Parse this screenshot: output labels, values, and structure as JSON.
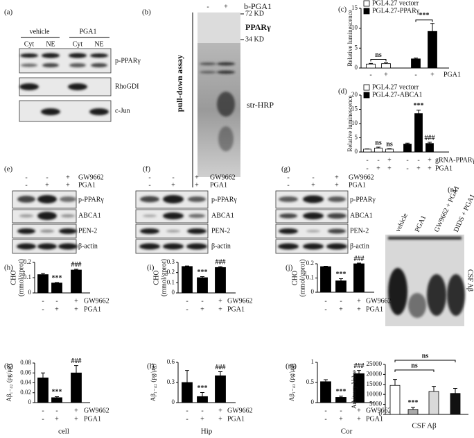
{
  "figure": {
    "a": {
      "label": "(a)",
      "groups": [
        "vehicle",
        "PGA1"
      ],
      "lanes": [
        "Cyt",
        "NE",
        "Cyt",
        "NE"
      ],
      "bands": [
        "p-PPARγ",
        "RhoGDI",
        "c-Jun"
      ]
    },
    "b": {
      "label": "(b)",
      "lanes": [
        "-",
        "+"
      ],
      "probe": "b-PGA1",
      "markers": [
        "72 KD",
        "34 KD"
      ],
      "bands": [
        "PPARγ",
        "str-HRP"
      ],
      "side": "pull-down assay"
    },
    "e": {
      "label": "(e)",
      "rows": [
        {
          "name": "GW9662",
          "values": [
            "-",
            "-",
            "+"
          ]
        },
        {
          "name": "PGA1",
          "values": [
            "-",
            "+",
            "+"
          ]
        }
      ],
      "bands": [
        "p-PPARγ",
        "ABCA1",
        "PEN-2",
        "β-actin"
      ]
    },
    "f": {
      "label": "(f)",
      "rows": [
        {
          "name": "GW9662",
          "values": [
            "-",
            "-",
            "+"
          ]
        },
        {
          "name": "PGA1",
          "values": [
            "-",
            "+",
            "+"
          ]
        }
      ],
      "bands": [
        "p-PPARγ",
        "ABCA1",
        "PEN-2",
        "β-actin"
      ]
    },
    "g": {
      "label": "(g)",
      "rows": [
        {
          "name": "GW9662",
          "values": [
            "-",
            "-",
            "+"
          ]
        },
        {
          "name": "PGA1",
          "values": [
            "-",
            "+",
            "+"
          ]
        }
      ],
      "bands": [
        "p-PPARγ",
        "ABCA1",
        "PEN-2",
        "β-actin"
      ]
    },
    "n": {
      "label": "(n)",
      "lanes": [
        "vehicle",
        "PGA1",
        "GW9662 + PGA1",
        "DIDS + PGA1"
      ],
      "band": "CSF Aβ"
    }
  },
  "chart_data": [
    {
      "type": "bar",
      "label": "(c)",
      "ylabel": "Relative luminescence",
      "ylim": [
        0,
        15
      ],
      "yticks": [
        0,
        5,
        10,
        15
      ],
      "series": [
        {
          "name": "PGL4.27 vectorr",
          "color": "#ffffff",
          "values": [
            1.0,
            1.1,
            null,
            null
          ],
          "errors": [
            0.15,
            0.2,
            null,
            null
          ]
        },
        {
          "name": "PGL4.27-PPARγ",
          "color": "#000000",
          "values": [
            null,
            null,
            2.3,
            9.2
          ],
          "errors": [
            null,
            null,
            0.2,
            2.0
          ]
        }
      ],
      "rows": [
        {
          "name": "PGA1",
          "values": [
            "-",
            "+",
            "-",
            "+"
          ]
        }
      ],
      "annotations": [
        "ns",
        "***"
      ]
    },
    {
      "type": "bar",
      "label": "(d)",
      "ylabel": "Relative luminescence",
      "ylim": [
        0,
        20
      ],
      "yticks": [
        0,
        5,
        10,
        15,
        20
      ],
      "series": [
        {
          "name": "PGL4.27 vectorr",
          "color": "#ffffff",
          "values": [
            1.0,
            1.4,
            1.0,
            null,
            null,
            null
          ],
          "errors": [
            0.1,
            0.3,
            0.2,
            null,
            null,
            null
          ]
        },
        {
          "name": "PGL4.27-ABCA1",
          "color": "#000000",
          "values": [
            null,
            null,
            null,
            2.8,
            13.5,
            3.0
          ],
          "errors": [
            null,
            null,
            null,
            0.3,
            1.2,
            0.4
          ]
        }
      ],
      "rows": [
        {
          "name": "gRNA-PPARγ",
          "values": [
            "-",
            "-",
            "+",
            "-",
            "-",
            "+"
          ]
        },
        {
          "name": "PGA1",
          "values": [
            "-",
            "+",
            "+",
            "-",
            "+",
            "+"
          ]
        }
      ],
      "annotations": [
        "ns",
        "ns",
        "***",
        "###"
      ]
    },
    {
      "type": "bar",
      "label": "(h)",
      "ylabel": [
        "CHO",
        "(mmol/gprot)"
      ],
      "ylim": [
        0,
        0.2
      ],
      "yticks": [
        0,
        0.1,
        0.2
      ],
      "series": [
        {
          "color": "#000000",
          "values": [
            0.12,
            0.065,
            0.15
          ],
          "errors": [
            0.008,
            0.003,
            0.005
          ]
        }
      ],
      "rows": [
        {
          "name": "GW9662",
          "values": [
            "-",
            "-",
            "+"
          ]
        },
        {
          "name": "PGA1",
          "values": [
            "-",
            "+",
            "+"
          ]
        }
      ],
      "annotations": [
        "***",
        "###"
      ]
    },
    {
      "type": "bar",
      "label": "(i)",
      "ylabel": [
        "CHO",
        "(mmol/gprot)"
      ],
      "ylim": [
        0,
        0.3
      ],
      "yticks": [
        0,
        0.1,
        0.2,
        0.3
      ],
      "series": [
        {
          "color": "#000000",
          "values": [
            0.26,
            0.15,
            0.25
          ],
          "errors": [
            0.005,
            0.01,
            0.008
          ]
        }
      ],
      "rows": [
        {
          "name": "GW9662",
          "values": [
            "-",
            "-",
            "+"
          ]
        },
        {
          "name": "PGA1",
          "values": [
            "-",
            "+",
            "+"
          ]
        }
      ],
      "annotations": [
        "***",
        "###"
      ]
    },
    {
      "type": "bar",
      "label": "(j)",
      "ylabel": [
        "CHO",
        "(mmol/gprot)"
      ],
      "ylim": [
        0,
        0.2
      ],
      "yticks": [
        0,
        0.1,
        0.2
      ],
      "series": [
        {
          "color": "#000000",
          "values": [
            0.18,
            0.08,
            0.2
          ],
          "errors": [
            0.003,
            0.015,
            0.005
          ]
        }
      ],
      "rows": [
        {
          "name": "GW9662",
          "values": [
            "-",
            "-",
            "+"
          ]
        },
        {
          "name": "PGA1",
          "values": [
            "-",
            "+",
            "+"
          ]
        }
      ],
      "annotations": [
        "***",
        "###"
      ]
    },
    {
      "type": "bar",
      "label": "(k)",
      "ylabel": "Aβ₁₋₄₂ (pg/μg)",
      "xlabel": "cell",
      "ylim": [
        0,
        0.08
      ],
      "yticks": [
        0,
        0.02,
        0.04,
        0.06,
        0.08
      ],
      "series": [
        {
          "color": "#000000",
          "values": [
            0.05,
            0.01,
            0.06
          ],
          "errors": [
            0.01,
            0.002,
            0.015
          ]
        }
      ],
      "rows": [
        {
          "name": "GW9662",
          "values": [
            "-",
            "-",
            "+"
          ]
        },
        {
          "name": "PGA1",
          "values": [
            "-",
            "+",
            "+"
          ]
        }
      ],
      "annotations": [
        "***",
        "###"
      ]
    },
    {
      "type": "bar",
      "label": "(l)",
      "ylabel": "Aβ₁₋₄₂ (pg/μg)",
      "xlabel": "Hip",
      "ylim": [
        0,
        0.6
      ],
      "yticks": [
        0,
        0.3,
        0.6
      ],
      "series": [
        {
          "color": "#000000",
          "values": [
            0.3,
            0.09,
            0.4
          ],
          "errors": [
            0.18,
            0.06,
            0.06
          ]
        }
      ],
      "rows": [
        {
          "name": "GW9662",
          "values": [
            "-",
            "-",
            "+"
          ]
        },
        {
          "name": "PGA1",
          "values": [
            "-",
            "+",
            "+"
          ]
        }
      ],
      "annotations": [
        "***",
        "###"
      ]
    },
    {
      "type": "bar",
      "label": "(m)",
      "ylabel": "Aβ₁₋₄₂ (pg/μg)",
      "xlabel": "Cor",
      "ylim": [
        0,
        1
      ],
      "yticks": [
        0,
        0.5,
        1
      ],
      "series": [
        {
          "color": "#000000",
          "values": [
            0.52,
            0.13,
            0.72
          ],
          "errors": [
            0.05,
            0.03,
            0.08
          ]
        }
      ],
      "rows": [
        {
          "name": "GW9662",
          "values": [
            "-",
            "-",
            "+"
          ]
        },
        {
          "name": "PGA1",
          "values": [
            "-",
            "+",
            "+"
          ]
        }
      ],
      "annotations": [
        "***",
        "###"
      ]
    },
    {
      "type": "bar",
      "ylabel": "Arbitrary Value",
      "xlabel": "CSF Aβ",
      "ylim": [
        0,
        25000
      ],
      "yticks": [
        0,
        5000,
        10000,
        15000,
        20000,
        25000
      ],
      "series": [
        {
          "colors": [
            "#ffffff",
            "#aaaaaa",
            "#d9d9d9",
            "#111111"
          ],
          "values": [
            14500,
            2500,
            11500,
            10500
          ],
          "errors": [
            3000,
            1000,
            2500,
            2500
          ]
        }
      ],
      "annotations": [
        "ns",
        "ns",
        "***"
      ]
    }
  ]
}
